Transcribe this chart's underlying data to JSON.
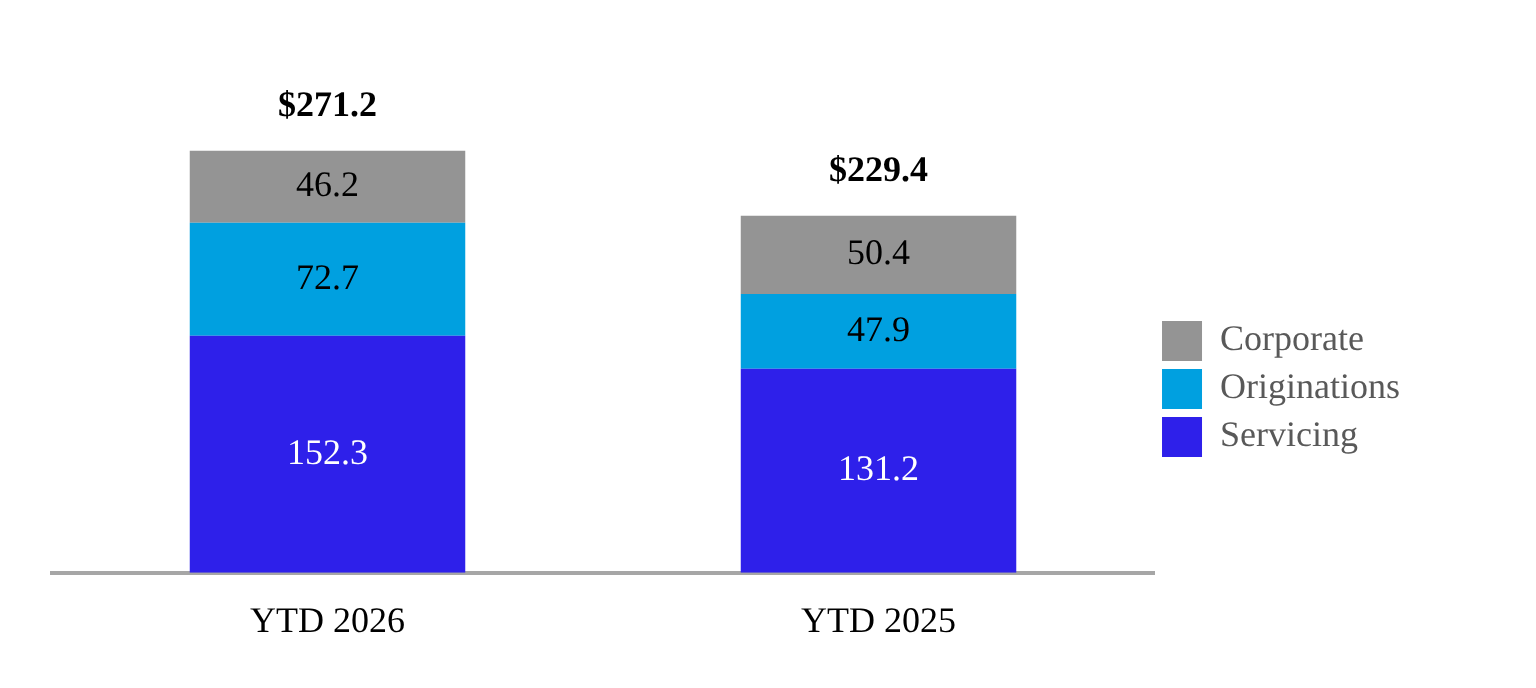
{
  "chart_data": {
    "type": "bar",
    "stacked": true,
    "categories": [
      "YTD 2026",
      "YTD 2025"
    ],
    "series": [
      {
        "name": "Servicing",
        "color": "#2e20ea",
        "values": [
          152.3,
          131.2
        ]
      },
      {
        "name": "Originations",
        "color": "#00a0e0",
        "values": [
          72.7,
          47.9
        ]
      },
      {
        "name": "Corporate",
        "color": "#949494",
        "values": [
          46.2,
          50.4
        ]
      }
    ],
    "totals": [
      "$271.2",
      "$229.4"
    ],
    "data_labels": true,
    "legend": "right",
    "grid": false
  }
}
